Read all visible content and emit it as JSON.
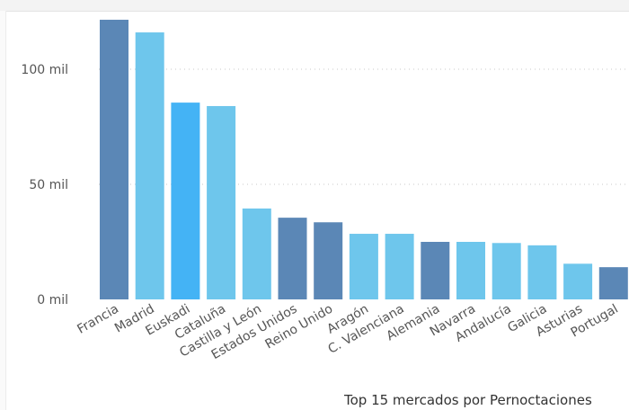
{
  "chart_data": {
    "type": "bar",
    "title": "Top 15 mercados por Pernoctaciones",
    "xlabel": "",
    "ylabel": "",
    "ylim": [
      0,
      122000
    ],
    "yticks": [
      {
        "value": 0,
        "label": "0 mil"
      },
      {
        "value": 50000,
        "label": "50 mil"
      },
      {
        "value": 100000,
        "label": "100 mil"
      }
    ],
    "grid": true,
    "categories": [
      "Francia",
      "Madrid",
      "Euskadi",
      "Cataluña",
      "Castilla y León",
      "Estados Unidos",
      "Reino Unido",
      "Aragón",
      "C. Valenciana",
      "Alemania",
      "Navarra",
      "Andalucía",
      "Galicia",
      "Asturias",
      "Portugal"
    ],
    "values": [
      121500,
      116000,
      85500,
      84000,
      39500,
      35500,
      33500,
      28500,
      28500,
      25000,
      25000,
      24500,
      23500,
      15500,
      14000
    ],
    "colors": [
      "#5b87b6",
      "#6ec6ec",
      "#44b3f5",
      "#6ec6ec",
      "#6ec6ec",
      "#5b87b6",
      "#5b87b6",
      "#6ec6ec",
      "#6ec6ec",
      "#5b87b6",
      "#6ec6ec",
      "#6ec6ec",
      "#6ec6ec",
      "#6ec6ec",
      "#5b87b6"
    ]
  }
}
